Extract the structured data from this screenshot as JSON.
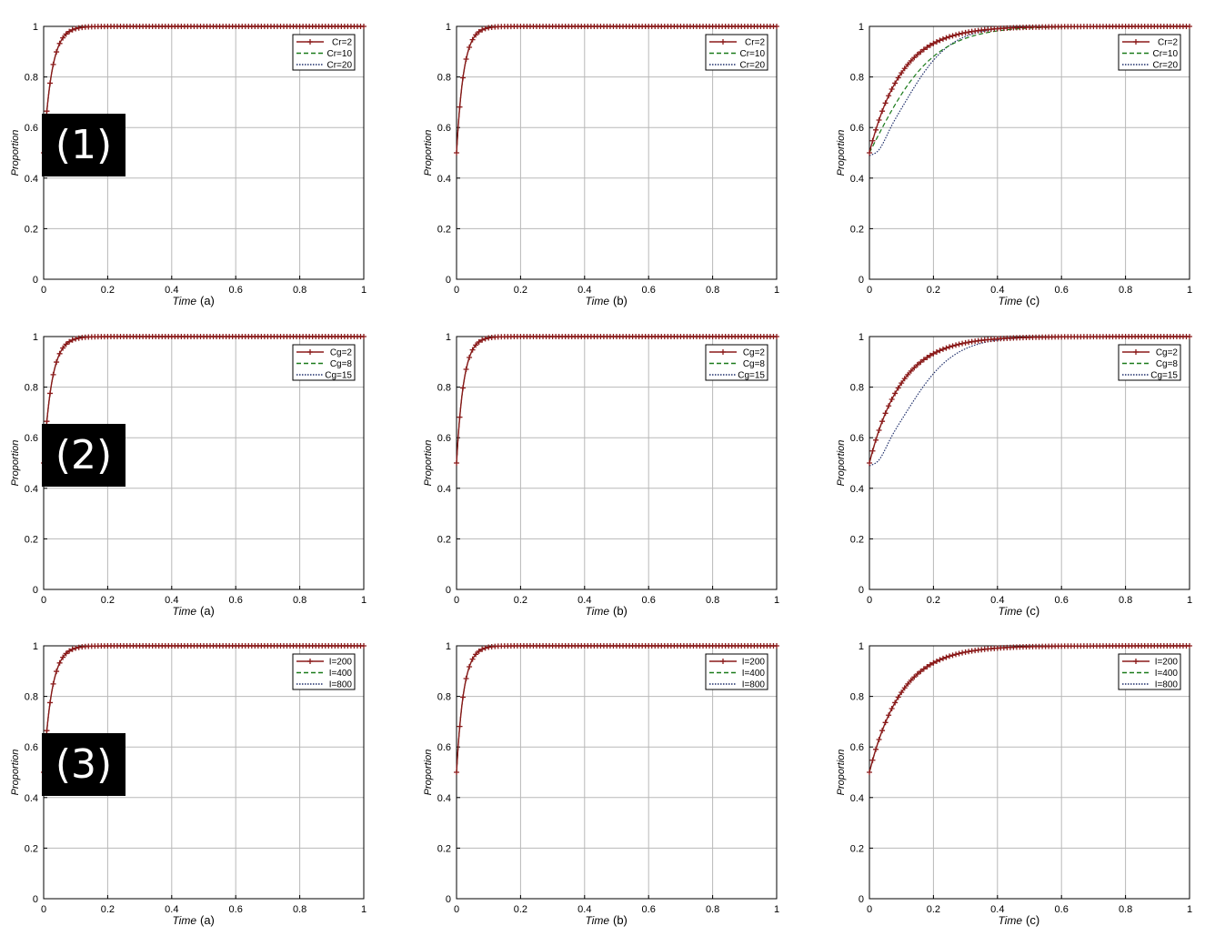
{
  "rows": [
    {
      "label": "(1)"
    },
    {
      "label": "(2)"
    },
    {
      "label": "(3)"
    }
  ],
  "colors": {
    "s1": "#8b1a1a",
    "s2": "#1a7a1a",
    "s3": "#1f2f6b",
    "grid": "#b8b8b8",
    "axis": "#000000"
  },
  "chart_data": [
    {
      "type": "line",
      "xlabel": "Time",
      "panel_tag": "(a)",
      "ylabel": "Proportion",
      "xlim": [
        0,
        1
      ],
      "ylim": [
        0,
        1
      ],
      "xticks": [
        "0",
        "0.2",
        "0.4",
        "0.6",
        "0.8",
        "1"
      ],
      "yticks": [
        "0",
        "0.2",
        "0.4",
        "0.6",
        "0.8",
        "1"
      ],
      "grid": true,
      "legend": "top-right",
      "series": [
        {
          "name": "Cr=2",
          "style": "solid-plus",
          "rate": 40,
          "shape": "exp",
          "start": 0.5
        },
        {
          "name": "Cr=10",
          "style": "dashed",
          "rate": 40,
          "shape": "exp",
          "start": 0.5
        },
        {
          "name": "Cr=20",
          "style": "dotted",
          "rate": 40,
          "shape": "exp",
          "start": 0.5
        }
      ]
    },
    {
      "type": "line",
      "xlabel": "Time",
      "panel_tag": "(b)",
      "ylabel": "Proportion",
      "xlim": [
        0,
        1
      ],
      "ylim": [
        0,
        1
      ],
      "xticks": [
        "0",
        "0.2",
        "0.4",
        "0.6",
        "0.8",
        "1"
      ],
      "yticks": [
        "0",
        "0.2",
        "0.4",
        "0.6",
        "0.8",
        "1"
      ],
      "grid": true,
      "legend": "top-right",
      "series": [
        {
          "name": "Cr=2",
          "style": "solid-plus",
          "rate": 45,
          "shape": "exp",
          "start": 0.5
        },
        {
          "name": "Cr=10",
          "style": "dashed",
          "rate": 45,
          "shape": "exp",
          "start": 0.5
        },
        {
          "name": "Cr=20",
          "style": "dotted",
          "rate": 45,
          "shape": "exp",
          "start": 0.5
        }
      ]
    },
    {
      "type": "line",
      "xlabel": "Time",
      "panel_tag": "(c)",
      "ylabel": "Proportion",
      "xlim": [
        0,
        1
      ],
      "ylim": [
        0,
        1
      ],
      "xticks": [
        "0",
        "0.2",
        "0.4",
        "0.6",
        "0.8",
        "1"
      ],
      "yticks": [
        "0",
        "0.2",
        "0.4",
        "0.6",
        "0.8",
        "1"
      ],
      "grid": true,
      "legend": "top-right",
      "series": [
        {
          "name": "Cr=2",
          "style": "solid-plus",
          "rate": 10,
          "shape": "exp",
          "start": 0.5
        },
        {
          "name": "Cr=10",
          "style": "dashed",
          "rate": 10,
          "shape": "logistic",
          "start": 0.5
        },
        {
          "name": "Cr=20",
          "style": "dotted",
          "rate": 14,
          "shape": "sigmoid",
          "start": 0.5
        }
      ]
    },
    {
      "type": "line",
      "xlabel": "Time",
      "panel_tag": "(a)",
      "ylabel": "Proportion",
      "xlim": [
        0,
        1
      ],
      "ylim": [
        0,
        1
      ],
      "xticks": [
        "0",
        "0.2",
        "0.4",
        "0.6",
        "0.8",
        "1"
      ],
      "yticks": [
        "0",
        "0.2",
        "0.4",
        "0.6",
        "0.8",
        "1"
      ],
      "grid": true,
      "legend": "top-right",
      "series": [
        {
          "name": "Cg=2",
          "style": "solid-plus",
          "rate": 40,
          "shape": "exp",
          "start": 0.5
        },
        {
          "name": "Cg=8",
          "style": "dashed",
          "rate": 40,
          "shape": "exp",
          "start": 0.5
        },
        {
          "name": "Cg=15",
          "style": "dotted",
          "rate": 40,
          "shape": "exp",
          "start": 0.5
        }
      ]
    },
    {
      "type": "line",
      "xlabel": "Time",
      "panel_tag": "(b)",
      "ylabel": "Proportion",
      "xlim": [
        0,
        1
      ],
      "ylim": [
        0,
        1
      ],
      "xticks": [
        "0",
        "0.2",
        "0.4",
        "0.6",
        "0.8",
        "1"
      ],
      "yticks": [
        "0",
        "0.2",
        "0.4",
        "0.6",
        "0.8",
        "1"
      ],
      "grid": true,
      "legend": "top-right",
      "series": [
        {
          "name": "Cg=2",
          "style": "solid-plus",
          "rate": 45,
          "shape": "exp",
          "start": 0.5
        },
        {
          "name": "Cg=8",
          "style": "dashed",
          "rate": 45,
          "shape": "exp",
          "start": 0.5
        },
        {
          "name": "Cg=15",
          "style": "dotted",
          "rate": 45,
          "shape": "exp",
          "start": 0.5
        }
      ]
    },
    {
      "type": "line",
      "xlabel": "Time",
      "panel_tag": "(c)",
      "ylabel": "Proportion",
      "xlim": [
        0,
        1
      ],
      "ylim": [
        0,
        1
      ],
      "xticks": [
        "0",
        "0.2",
        "0.4",
        "0.6",
        "0.8",
        "1"
      ],
      "yticks": [
        "0",
        "0.2",
        "0.4",
        "0.6",
        "0.8",
        "1"
      ],
      "grid": true,
      "legend": "top-right",
      "series": [
        {
          "name": "Cg=2",
          "style": "solid-plus",
          "rate": 10,
          "shape": "exp",
          "start": 0.5
        },
        {
          "name": "Cg=8",
          "style": "dashed",
          "rate": 10,
          "shape": "exp",
          "start": 0.5
        },
        {
          "name": "Cg=15",
          "style": "dotted",
          "rate": 13,
          "shape": "sigmoid",
          "start": 0.5
        }
      ]
    },
    {
      "type": "line",
      "xlabel": "Time",
      "panel_tag": "(a)",
      "ylabel": "Proportion",
      "xlim": [
        0,
        1
      ],
      "ylim": [
        0,
        1
      ],
      "xticks": [
        "0",
        "0.2",
        "0.4",
        "0.6",
        "0.8",
        "1"
      ],
      "yticks": [
        "0",
        "0.2",
        "0.4",
        "0.6",
        "0.8",
        "1"
      ],
      "grid": true,
      "legend": "top-right",
      "series": [
        {
          "name": "I=200",
          "style": "solid-plus",
          "rate": 40,
          "shape": "exp",
          "start": 0.5
        },
        {
          "name": "I=400",
          "style": "dashed",
          "rate": 40,
          "shape": "exp",
          "start": 0.5
        },
        {
          "name": "I=800",
          "style": "dotted",
          "rate": 40,
          "shape": "exp",
          "start": 0.5
        }
      ]
    },
    {
      "type": "line",
      "xlabel": "Time",
      "panel_tag": "(b)",
      "ylabel": "Proportion",
      "xlim": [
        0,
        1
      ],
      "ylim": [
        0,
        1
      ],
      "xticks": [
        "0",
        "0.2",
        "0.4",
        "0.6",
        "0.8",
        "1"
      ],
      "yticks": [
        "0",
        "0.2",
        "0.4",
        "0.6",
        "0.8",
        "1"
      ],
      "grid": true,
      "legend": "top-right",
      "series": [
        {
          "name": "I=200",
          "style": "solid-plus",
          "rate": 45,
          "shape": "exp",
          "start": 0.5
        },
        {
          "name": "I=400",
          "style": "dashed",
          "rate": 45,
          "shape": "exp",
          "start": 0.5
        },
        {
          "name": "I=800",
          "style": "dotted",
          "rate": 45,
          "shape": "exp",
          "start": 0.5
        }
      ]
    },
    {
      "type": "line",
      "xlabel": "Time",
      "panel_tag": "(c)",
      "ylabel": "Proportion",
      "xlim": [
        0,
        1
      ],
      "ylim": [
        0,
        1
      ],
      "xticks": [
        "0",
        "0.2",
        "0.4",
        "0.6",
        "0.8",
        "1"
      ],
      "yticks": [
        "0",
        "0.2",
        "0.4",
        "0.6",
        "0.8",
        "1"
      ],
      "grid": true,
      "legend": "top-right",
      "series": [
        {
          "name": "I=200",
          "style": "solid-plus",
          "rate": 10,
          "shape": "exp",
          "start": 0.5
        },
        {
          "name": "I=400",
          "style": "dashed",
          "rate": 10,
          "shape": "exp",
          "start": 0.5
        },
        {
          "name": "I=800",
          "style": "dotted",
          "rate": 10,
          "shape": "exp",
          "start": 0.5
        }
      ]
    }
  ]
}
